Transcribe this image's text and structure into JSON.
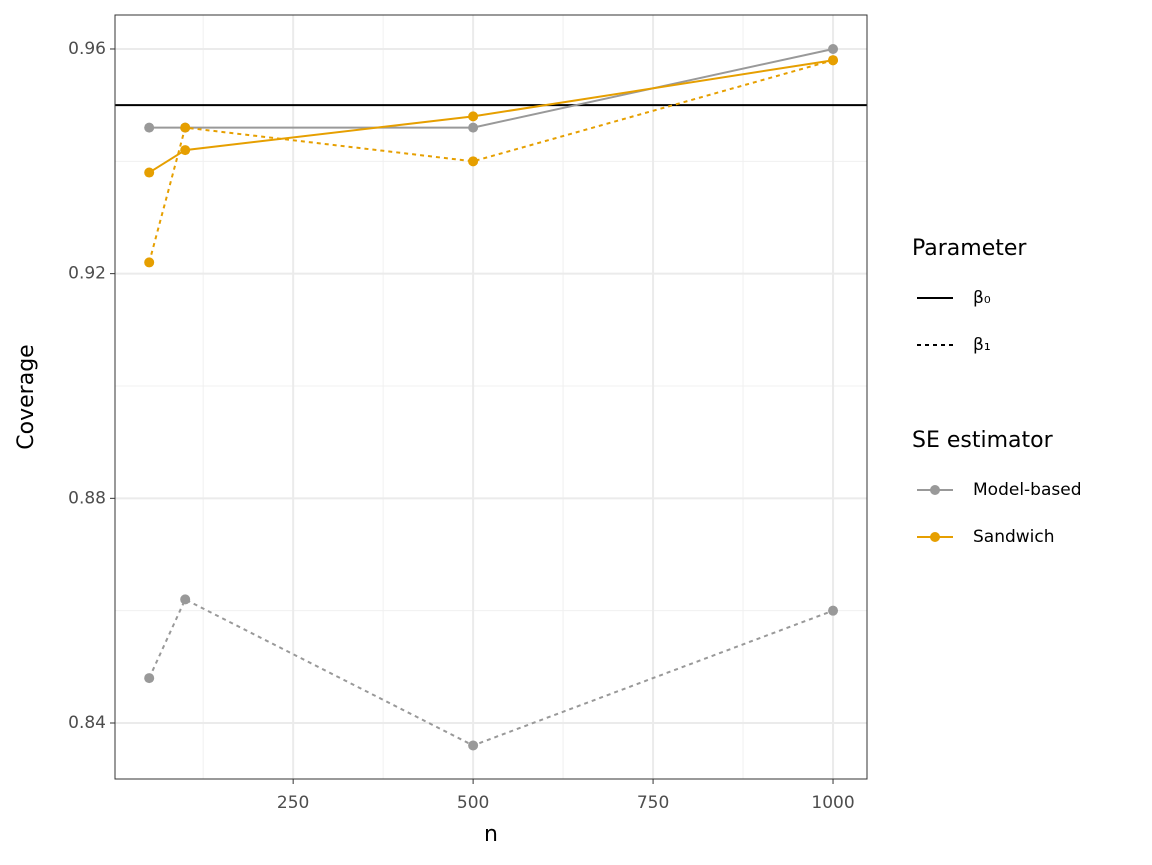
{
  "chart_data": {
    "type": "line",
    "x_label": "n",
    "y_label": "Coverage",
    "x": [
      50,
      100,
      500,
      1000
    ],
    "series": [
      {
        "estimator": "Model-based",
        "parameter": "β₀",
        "color": "#999999",
        "linetype": "solid",
        "values": [
          0.946,
          0.946,
          0.946,
          0.96
        ]
      },
      {
        "estimator": "Model-based",
        "parameter": "β₁",
        "color": "#999999",
        "linetype": "dashed",
        "values": [
          0.848,
          0.862,
          0.836,
          0.86
        ]
      },
      {
        "estimator": "Sandwich",
        "parameter": "β₀",
        "color": "#E69F00",
        "linetype": "solid",
        "values": [
          0.938,
          0.942,
          0.948,
          0.958
        ]
      },
      {
        "estimator": "Sandwich",
        "parameter": "β₁",
        "color": "#E69F00",
        "linetype": "dashed",
        "values": [
          0.922,
          0.946,
          0.94,
          0.958
        ]
      }
    ],
    "reference_line": {
      "value": 0.95,
      "color": "#000000"
    },
    "xlim": [
      2.5,
      1047.2
    ],
    "ylim": [
      0.83003,
      0.96605
    ],
    "xticks": [
      250,
      500,
      750,
      1000
    ],
    "yticks": [
      0.84,
      0.88,
      0.92,
      0.96
    ],
    "xminor": [
      125,
      375,
      625,
      875
    ],
    "yminor": [
      0.86,
      0.9,
      0.94
    ],
    "grid": true,
    "legends": [
      {
        "title": "Parameter",
        "entries": [
          {
            "label": "β₀",
            "linetype": "solid",
            "color": "#000000"
          },
          {
            "label": "β₁",
            "linetype": "dashed",
            "color": "#000000"
          }
        ]
      },
      {
        "title": "SE estimator",
        "entries": [
          {
            "label": "Model-based",
            "color": "#999999"
          },
          {
            "label": "Sandwich",
            "color": "#E69F00"
          }
        ]
      }
    ]
  }
}
